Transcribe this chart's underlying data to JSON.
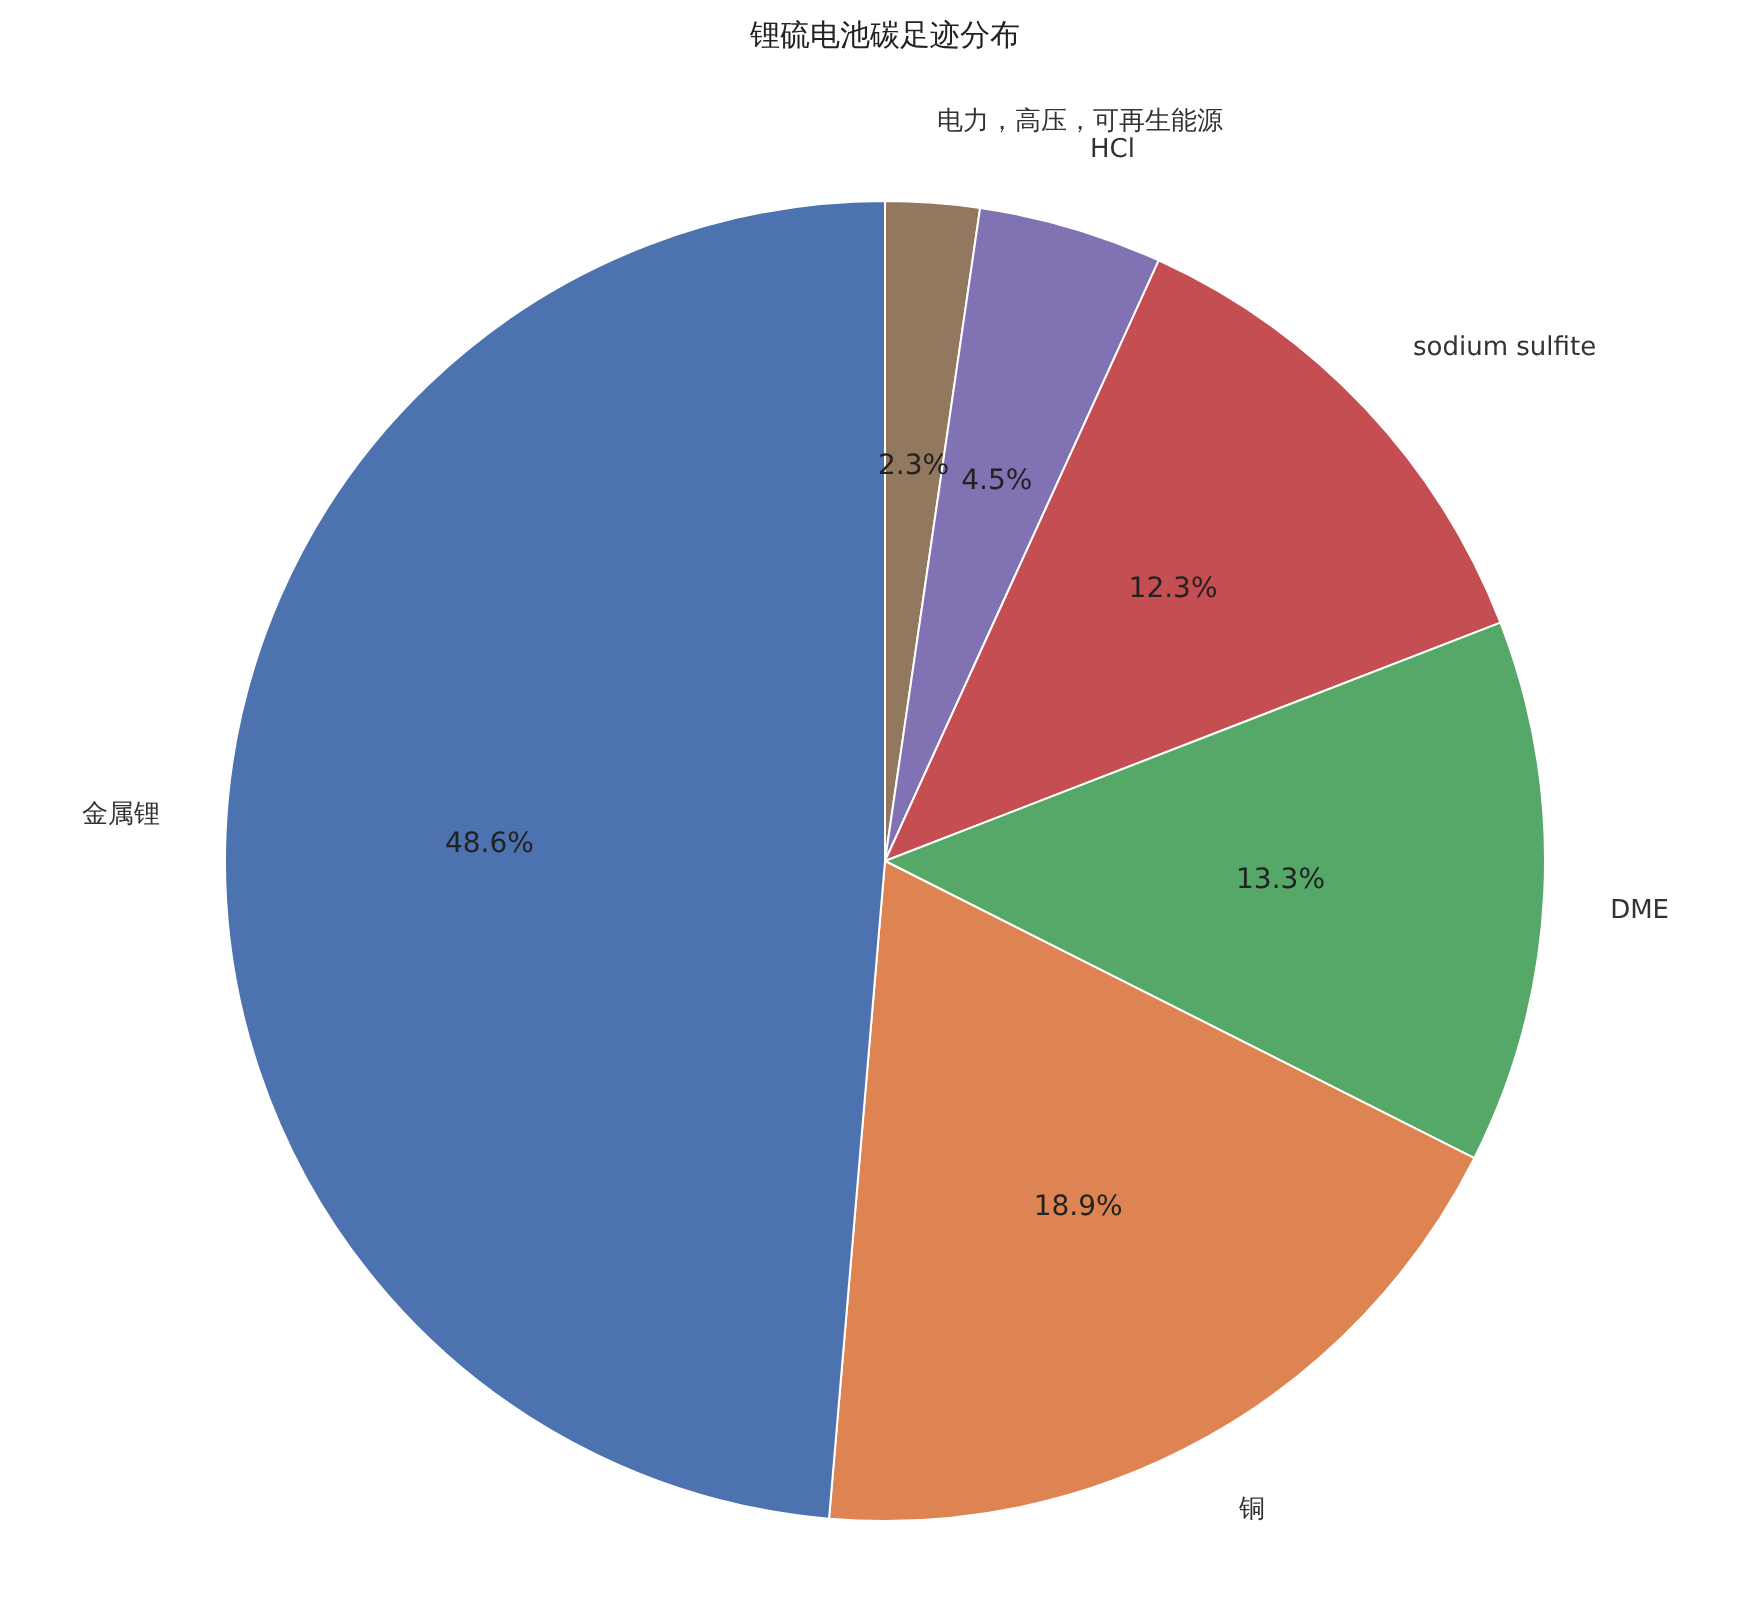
{
  "chart_data": {
    "type": "pie",
    "title": "锂硫电池碳足迹分布",
    "categories": [
      "电力，高压，可再生能源",
      "HCl",
      "sodium sulfite",
      "DME",
      "铜",
      "金属锂"
    ],
    "values": [
      2.3,
      4.5,
      12.3,
      13.3,
      18.9,
      48.6
    ],
    "colors": [
      "#937860",
      "#8172b3",
      "#c44e52",
      "#55a868",
      "#dd8452",
      "#4c72b0"
    ],
    "value_labels": [
      "2.3%",
      "4.5%",
      "12.3%",
      "13.3%",
      "18.9%",
      "48.6%"
    ]
  }
}
